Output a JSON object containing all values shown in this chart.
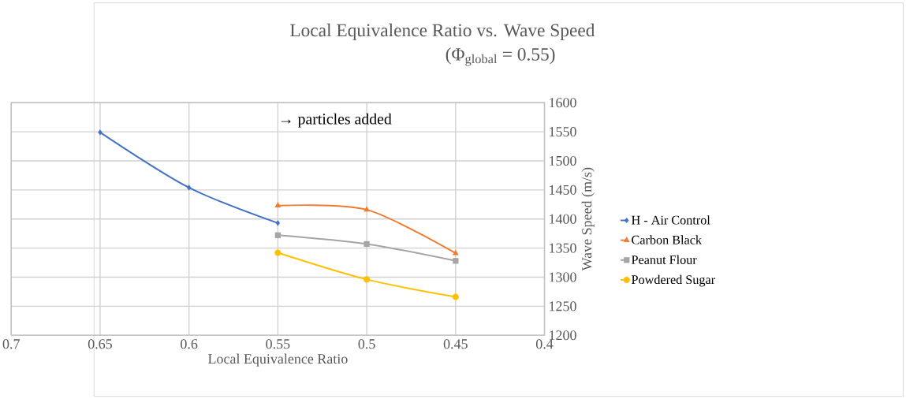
{
  "chart_data": {
    "type": "line",
    "title": "Local Equivalence Ratio vs. Wave Speed",
    "subtitle": "(Φ$_{global}$ = 0.55)",
    "xlabel": "Local Equivalence Ratio",
    "ylabel": "Wave Speed (m/s)",
    "xlim": [
      0.7,
      0.4
    ],
    "xticks": [
      0.7,
      0.65,
      0.6,
      0.55,
      0.5,
      0.45,
      0.4
    ],
    "ylim": [
      1200,
      1600
    ],
    "yticks": [
      1200,
      1250,
      1300,
      1350,
      1400,
      1450,
      1500,
      1550,
      1600
    ],
    "grid": true,
    "legend": "right",
    "annotations": [
      "→ particles added"
    ],
    "series": [
      {
        "name": "H - Air Control",
        "color": "#4472c4",
        "marker": "diamond",
        "x": [
          0.65,
          0.6,
          0.55
        ],
        "values": [
          1549,
          1454,
          1393
        ]
      },
      {
        "name": "Carbon Black",
        "color": "#ed7d31",
        "marker": "triangle",
        "x": [
          0.55,
          0.5,
          0.45
        ],
        "values": [
          1423,
          1416,
          1341
        ]
      },
      {
        "name": "Peanut Flour",
        "color": "#a5a5a5",
        "marker": "square",
        "x": [
          0.55,
          0.5,
          0.45
        ],
        "values": [
          1372,
          1357,
          1328
        ]
      },
      {
        "name": "Powdered Sugar",
        "color": "#ffc000",
        "marker": "circle",
        "x": [
          0.55,
          0.5,
          0.45
        ],
        "values": [
          1342,
          1296,
          1266
        ]
      }
    ]
  }
}
